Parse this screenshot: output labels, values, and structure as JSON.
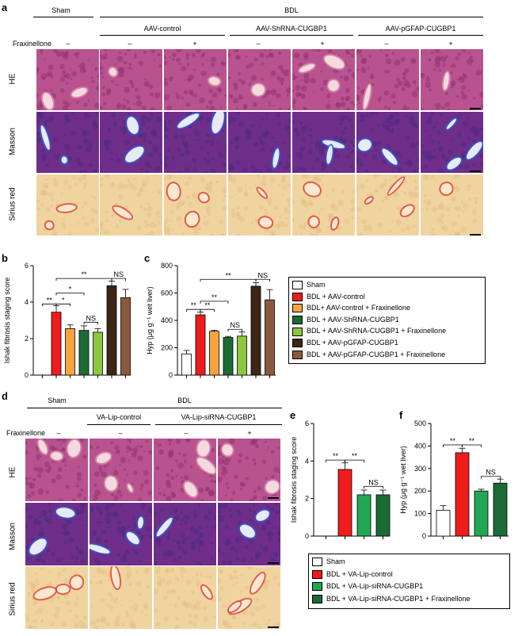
{
  "panels": {
    "a": "a",
    "b": "b",
    "c": "c",
    "d": "d",
    "e": "e",
    "f": "f"
  },
  "top": {
    "sham": "Sham",
    "bdl": "BDL",
    "groups": [
      "AAV-control",
      "AAV-ShRNA-CUGBP1",
      "AAV-pGFAP-CUGBP1"
    ],
    "fraxinellone_label": "Fraxinellone",
    "fraxinellone_signs": [
      "–",
      "–",
      "+",
      "–",
      "+",
      "–",
      "+"
    ],
    "rows": [
      "HE",
      "Masson",
      "Sirius red"
    ]
  },
  "bottom": {
    "sham": "Sham",
    "bdl": "BDL",
    "groups": [
      "VA-Lip-control",
      "VA-Lip-siRNA-CUGBP1"
    ],
    "fraxinellone_label": "Fraxinellone",
    "fraxinellone_signs": [
      "–",
      "–",
      "–",
      "+"
    ],
    "rows": [
      "HE",
      "Masson",
      "Sirius red"
    ]
  },
  "colors": {
    "he_bg": "#b8538f",
    "masson_bg": "#6e2e8a",
    "sirius_bg": "#f0d4a0",
    "white": "#ffffff",
    "red": "#ee1c1c",
    "orange": "#f7a440",
    "dark_green": "#1b6b35",
    "light_green": "#8dc63f",
    "dark_brown": "#3d2616",
    "brown": "#8b5a3c",
    "mid_green": "#22a854"
  },
  "legend_top": [
    {
      "label": "Sham",
      "color": "#ffffff"
    },
    {
      "label": "BDL + AAV-control",
      "color": "#ee1c1c"
    },
    {
      "label": "BDL+ AAV-control + Fraxinellone",
      "color": "#f7a440"
    },
    {
      "label": "BDL + AAV-ShRNA-CUGBP1",
      "color": "#1b6b35"
    },
    {
      "label": "BDL + AAV-ShRNA-CUGBP1 + Fraxinellone",
      "color": "#8dc63f"
    },
    {
      "label": "BDL + AAV-pGFAP-CUGBP1",
      "color": "#3d2616"
    },
    {
      "label": "BDL + AAV-pGFAP-CUGBP1 + Fraxinellone",
      "color": "#8b5a3c"
    }
  ],
  "legend_bottom": [
    {
      "label": "Sham",
      "color": "#ffffff"
    },
    {
      "label": "BDL + VA-Lip-control",
      "color": "#ee1c1c"
    },
    {
      "label": "BDL + VA-Lip-siRNA-CUGBP1",
      "color": "#22a854"
    },
    {
      "label": "BDL + VA-Lip-siRNA-CUGBP1 + Fraxinellone",
      "color": "#1b6b35"
    }
  ],
  "chart_data": [
    {
      "id": "b",
      "type": "bar",
      "ylabel": "Ishak fibrosis staging score",
      "ylim": [
        0,
        6
      ],
      "yticks": [
        0,
        2,
        4,
        6
      ],
      "values": [
        0,
        3.45,
        2.55,
        2.45,
        2.35,
        4.9,
        4.25
      ],
      "errors": [
        0,
        0.35,
        0.2,
        0.25,
        0.2,
        0.25,
        0.45
      ],
      "colors": [
        "#ffffff",
        "#ee1c1c",
        "#f7a440",
        "#1b6b35",
        "#8dc63f",
        "#3d2616",
        "#8b5a3c"
      ],
      "sig": [
        {
          "a": 0,
          "b": 1,
          "y": 3.9,
          "label": "**"
        },
        {
          "a": 1,
          "b": 2,
          "y": 3.9,
          "label": "*"
        },
        {
          "a": 1,
          "b": 3,
          "y": 4.5,
          "label": "*"
        },
        {
          "a": 1,
          "b": 5,
          "y": 5.3,
          "label": "**"
        },
        {
          "a": 3,
          "b": 4,
          "y": 2.9,
          "label": "NS"
        },
        {
          "a": 5,
          "b": 6,
          "y": 5.3,
          "label": "NS"
        }
      ]
    },
    {
      "id": "c",
      "type": "bar",
      "ylabel": "Hyp (μg g⁻¹ wet liver)",
      "ylim": [
        0,
        800
      ],
      "yticks": [
        0,
        200,
        400,
        600,
        800
      ],
      "values": [
        155,
        440,
        320,
        275,
        285,
        650,
        550
      ],
      "errors": [
        25,
        20,
        8,
        8,
        30,
        25,
        75
      ],
      "colors": [
        "#ffffff",
        "#ee1c1c",
        "#f7a440",
        "#1b6b35",
        "#8dc63f",
        "#3d2616",
        "#8b5a3c"
      ],
      "sig": [
        {
          "a": 0,
          "b": 1,
          "y": 480,
          "label": "**"
        },
        {
          "a": 1,
          "b": 2,
          "y": 480,
          "label": "**"
        },
        {
          "a": 1,
          "b": 3,
          "y": 540,
          "label": "**"
        },
        {
          "a": 1,
          "b": 5,
          "y": 700,
          "label": "**"
        },
        {
          "a": 3,
          "b": 4,
          "y": 335,
          "label": "NS"
        },
        {
          "a": 5,
          "b": 6,
          "y": 700,
          "label": "NS"
        }
      ]
    },
    {
      "id": "e",
      "type": "bar",
      "ylabel": "Ishak fibrosis staging score",
      "ylim": [
        0,
        6
      ],
      "yticks": [
        0,
        2,
        4,
        6
      ],
      "values": [
        0,
        3.55,
        2.2,
        2.2
      ],
      "errors": [
        0,
        0.35,
        0.25,
        0.25
      ],
      "colors": [
        "#ffffff",
        "#ee1c1c",
        "#22a854",
        "#1b6b35"
      ],
      "sig": [
        {
          "a": 0,
          "b": 1,
          "y": 4.05,
          "label": "**"
        },
        {
          "a": 1,
          "b": 2,
          "y": 4.05,
          "label": "**"
        },
        {
          "a": 2,
          "b": 3,
          "y": 2.65,
          "label": "NS"
        }
      ]
    },
    {
      "id": "f",
      "type": "bar",
      "ylabel": "Hyp (μg g⁻¹ wet liver)",
      "ylim": [
        0,
        500
      ],
      "yticks": [
        0,
        100,
        200,
        300,
        400,
        500
      ],
      "values": [
        115,
        370,
        200,
        235
      ],
      "errors": [
        20,
        20,
        8,
        18
      ],
      "colors": [
        "#ffffff",
        "#ee1c1c",
        "#22a854",
        "#1b6b35"
      ],
      "sig": [
        {
          "a": 0,
          "b": 1,
          "y": 405,
          "label": "**"
        },
        {
          "a": 1,
          "b": 2,
          "y": 405,
          "label": "**"
        },
        {
          "a": 2,
          "b": 3,
          "y": 265,
          "label": "NS"
        }
      ]
    }
  ]
}
